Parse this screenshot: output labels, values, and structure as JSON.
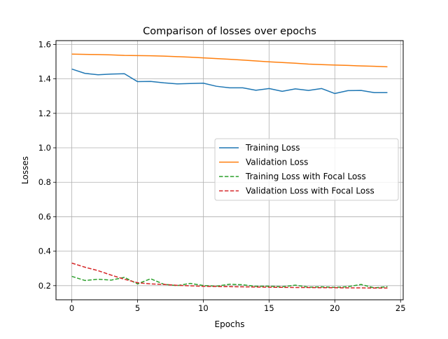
{
  "chart_data": {
    "type": "line",
    "title": "Comparison of losses over epochs",
    "xlabel": "Epochs",
    "ylabel": "Losses",
    "xlim": [
      -1.2,
      25.2
    ],
    "ylim": [
      0.118,
      1.622
    ],
    "xticks": [
      0,
      5,
      10,
      15,
      20,
      25
    ],
    "yticks": [
      0.2,
      0.4,
      0.6,
      0.8,
      1.0,
      1.2,
      1.4,
      1.6
    ],
    "grid": true,
    "legend_position": "center-right",
    "x": [
      0,
      1,
      2,
      3,
      4,
      5,
      6,
      7,
      8,
      9,
      10,
      11,
      12,
      13,
      14,
      15,
      16,
      17,
      18,
      19,
      20,
      21,
      22,
      23,
      24
    ],
    "series": [
      {
        "name": "Training Loss",
        "style": "solid",
        "color": "#1f77b4",
        "values": [
          1.457,
          1.432,
          1.424,
          1.428,
          1.43,
          1.384,
          1.385,
          1.377,
          1.371,
          1.373,
          1.375,
          1.357,
          1.348,
          1.348,
          1.334,
          1.344,
          1.328,
          1.342,
          1.333,
          1.344,
          1.315,
          1.332,
          1.333,
          1.32,
          1.32
        ]
      },
      {
        "name": "Validation Loss",
        "style": "solid",
        "color": "#ff7f0e",
        "values": [
          1.544,
          1.542,
          1.541,
          1.539,
          1.536,
          1.535,
          1.534,
          1.532,
          1.529,
          1.526,
          1.522,
          1.518,
          1.514,
          1.509,
          1.504,
          1.499,
          1.495,
          1.491,
          1.486,
          1.483,
          1.48,
          1.478,
          1.475,
          1.473,
          1.47
        ]
      },
      {
        "name": "Training Loss with Focal Loss",
        "style": "dashed",
        "color": "#2ca02c",
        "values": [
          0.254,
          0.23,
          0.237,
          0.232,
          0.248,
          0.21,
          0.24,
          0.208,
          0.2,
          0.213,
          0.201,
          0.197,
          0.208,
          0.205,
          0.196,
          0.197,
          0.193,
          0.203,
          0.191,
          0.193,
          0.19,
          0.194,
          0.207,
          0.187,
          0.194
        ]
      },
      {
        "name": "Validation Loss with Focal Loss",
        "style": "dashed",
        "color": "#d62728",
        "values": [
          0.331,
          0.307,
          0.287,
          0.261,
          0.237,
          0.217,
          0.21,
          0.207,
          0.202,
          0.199,
          0.196,
          0.195,
          0.194,
          0.193,
          0.192,
          0.191,
          0.19,
          0.189,
          0.189,
          0.188,
          0.188,
          0.187,
          0.187,
          0.186,
          0.186
        ]
      }
    ]
  }
}
